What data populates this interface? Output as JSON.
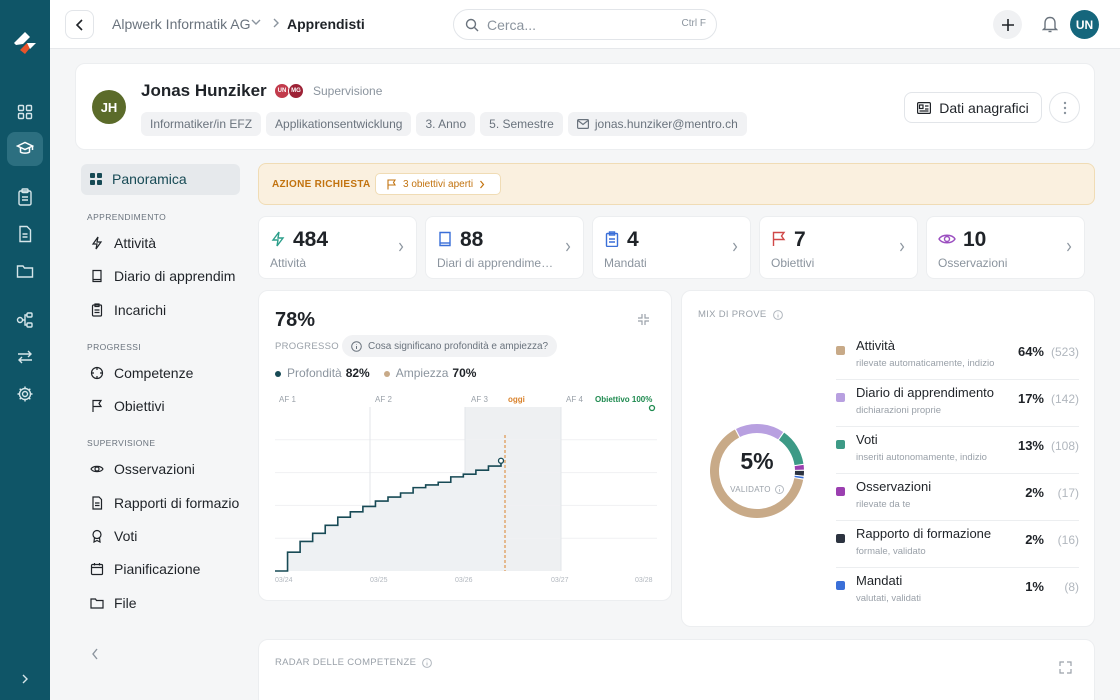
{
  "topbar": {
    "company": "Alpwerk Informatik AG",
    "page": "Apprendisti",
    "search_placeholder": "Cerca...",
    "search_shortcut": "Ctrl F",
    "user_initials": "UN"
  },
  "profile": {
    "initials": "JH",
    "name": "Jonas Hunziker",
    "supervisors": [
      "UN",
      "MG"
    ],
    "supervision_label": "Supervisione",
    "chips": [
      "Informatiker/in EFZ",
      "Applikationsentwicklung",
      "3. Anno",
      "5. Semestre"
    ],
    "email": "jonas.hunziker@mentro.ch",
    "dati_button": "Dati anagrafici"
  },
  "sidebar": {
    "overview": "Panoramica",
    "section_learning": "APPRENDIMENTO",
    "section_progress": "PROGRESSI",
    "section_supervision": "SUPERVISIONE",
    "items": {
      "attivita": "Attività",
      "diario": "Diario di apprendim",
      "incarichi": "Incarichi",
      "competenze": "Competenze",
      "obiettivi": "Obiettivi",
      "osservazioni": "Osservazioni",
      "rapporti": "Rapporti di formazio",
      "voti": "Voti",
      "pianificazione": "Pianificazione",
      "file": "File"
    }
  },
  "alert": {
    "label": "AZIONE RICHIESTA",
    "pill": "3 obiettivi aperti"
  },
  "stats": [
    {
      "value": "484",
      "label": "Attività",
      "icon": "bolt-icon",
      "color": "#2b9e8a"
    },
    {
      "value": "88",
      "label": "Diari di apprendimento",
      "icon": "book-icon",
      "color": "#3a6fd8"
    },
    {
      "value": "4",
      "label": "Mandati",
      "icon": "clipboard-icon",
      "color": "#3a6fd8"
    },
    {
      "value": "7",
      "label": "Obiettivi",
      "icon": "flag-icon",
      "color": "#d04848"
    },
    {
      "value": "10",
      "label": "Osservazioni",
      "icon": "eye-icon",
      "color": "#9b4fc0"
    }
  ],
  "progress": {
    "percent": "78%",
    "label": "PROGRESSO",
    "help": "Cosa significano profondità e ampiezza?",
    "legend": [
      {
        "name": "Profondità",
        "value": "82%",
        "color": "#174a55"
      },
      {
        "name": "Ampiezza",
        "value": "70%",
        "color": "#c8aa88"
      }
    ],
    "phases": [
      "AF 1",
      "AF 2",
      "AF 3",
      "AF 4"
    ],
    "today": "oggi",
    "target": "Obiettivo 100%",
    "xticks": [
      "03/24",
      "03/25",
      "03/26",
      "03/27",
      "03/28"
    ]
  },
  "chart_data": {
    "type": "line",
    "x_ticks": [
      "03/24",
      "03/25",
      "03/26",
      "03/27",
      "03/28"
    ],
    "phases": [
      "AF 1",
      "AF 2",
      "AF 3",
      "AF 4"
    ],
    "today_marker": "oggi",
    "target_label": "Obiettivo 100%",
    "series": [
      {
        "name": "Profondità",
        "color": "#174a55",
        "values": [
          0,
          14,
          22,
          28,
          34,
          40,
          44,
          48,
          52,
          55,
          58,
          62,
          64,
          66,
          70,
          72,
          75,
          78,
          82
        ]
      }
    ],
    "ylim": [
      0,
      100
    ]
  },
  "mix": {
    "title": "MIX DI PROVE",
    "center_value": "5%",
    "center_label": "VALIDATO",
    "rows": [
      {
        "name": "Attività",
        "sub": "rilevate automaticamente, indizio",
        "pct": "64%",
        "count": "(523)",
        "color": "#c8aa88"
      },
      {
        "name": "Diario di apprendimento",
        "sub": "dichiarazioni proprie",
        "pct": "17%",
        "count": "(142)",
        "color": "#b8a0e0"
      },
      {
        "name": "Voti",
        "sub": "inseriti autonomamente, indizio",
        "pct": "13%",
        "count": "(108)",
        "color": "#3d9a86"
      },
      {
        "name": "Osservazioni",
        "sub": "rilevate da te",
        "pct": "2%",
        "count": "(17)",
        "color": "#9b3fb0"
      },
      {
        "name": "Rapporto di formazione",
        "sub": "formale, validato",
        "pct": "2%",
        "count": "(16)",
        "color": "#2c3340"
      },
      {
        "name": "Mandati",
        "sub": "valutati, validati",
        "pct": "1%",
        "count": "(8)",
        "color": "#3a6fd8"
      }
    ],
    "donut": [
      64,
      17,
      13,
      2,
      2,
      1
    ]
  },
  "radar": {
    "title": "RADAR DELLE COMPETENZE"
  }
}
